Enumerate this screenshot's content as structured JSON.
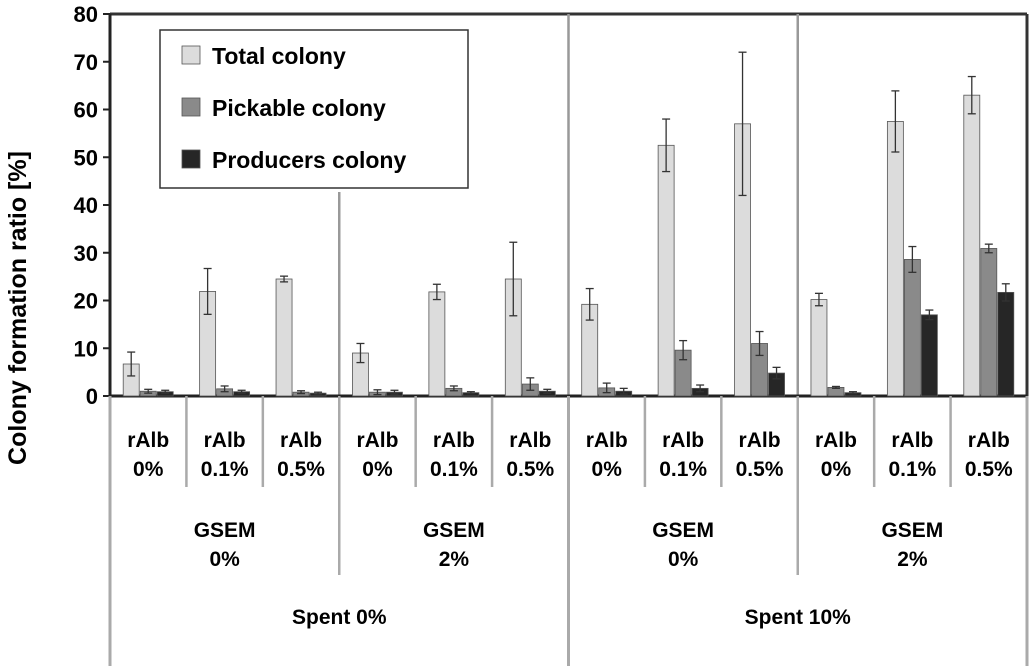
{
  "chart_data": {
    "type": "bar",
    "ylabel": "Colony formation ratio  [%]",
    "ylim": [
      0,
      80
    ],
    "yticks": [
      0,
      10,
      20,
      30,
      40,
      50,
      60,
      70,
      80
    ],
    "grid": false,
    "legend_position": "top-left",
    "categories": [
      {
        "line1": "rAlb",
        "line2": "0%"
      },
      {
        "line1": "rAlb",
        "line2": "0.1%"
      },
      {
        "line1": "rAlb",
        "line2": "0.5%"
      },
      {
        "line1": "rAlb",
        "line2": "0%"
      },
      {
        "line1": "rAlb",
        "line2": "0.1%"
      },
      {
        "line1": "rAlb",
        "line2": "0.5%"
      },
      {
        "line1": "rAlb",
        "line2": "0%"
      },
      {
        "line1": "rAlb",
        "line2": "0.1%"
      },
      {
        "line1": "rAlb",
        "line2": "0.5%"
      },
      {
        "line1": "rAlb",
        "line2": "0%"
      },
      {
        "line1": "rAlb",
        "line2": "0.1%"
      },
      {
        "line1": "rAlb",
        "line2": "0.5%"
      }
    ],
    "gsem_groups": [
      {
        "line1": "GSEM",
        "line2": "0%",
        "span": [
          0,
          2
        ]
      },
      {
        "line1": "GSEM",
        "line2": "2%",
        "span": [
          3,
          5
        ]
      },
      {
        "line1": "GSEM",
        "line2": "0%",
        "span": [
          6,
          8
        ]
      },
      {
        "line1": "GSEM",
        "line2": "2%",
        "span": [
          9,
          11
        ]
      }
    ],
    "spent_groups": [
      {
        "label": "Spent  0%",
        "span": [
          0,
          5
        ]
      },
      {
        "label": "Spent  10%",
        "span": [
          6,
          11
        ]
      }
    ],
    "series": [
      {
        "name": "Total colony",
        "color": "#dcdcdc",
        "values": [
          6.7,
          21.9,
          24.5,
          9.0,
          21.8,
          24.5,
          19.2,
          52.5,
          57.0,
          20.2,
          57.5,
          63.0
        ],
        "errors": [
          2.5,
          4.8,
          0.6,
          2.0,
          1.6,
          7.7,
          3.3,
          5.5,
          15.0,
          1.3,
          6.4,
          3.9
        ]
      },
      {
        "name": "Pickable colony",
        "color": "#8a8a8a",
        "values": [
          1.0,
          1.5,
          0.8,
          0.8,
          1.6,
          2.5,
          1.7,
          9.6,
          11.0,
          1.8,
          28.6,
          30.9
        ],
        "errors": [
          0.4,
          0.6,
          0.3,
          0.5,
          0.5,
          1.3,
          1.0,
          2.0,
          2.5,
          0.2,
          2.7,
          0.9
        ]
      },
      {
        "name": "Producers colony",
        "color": "#262626",
        "values": [
          0.9,
          0.9,
          0.6,
          0.8,
          0.7,
          1.0,
          1.0,
          1.6,
          4.8,
          0.7,
          17.0,
          21.7
        ],
        "errors": [
          0.3,
          0.3,
          0.2,
          0.4,
          0.2,
          0.4,
          0.6,
          0.7,
          1.2,
          0.2,
          1.0,
          1.8
        ]
      }
    ]
  }
}
